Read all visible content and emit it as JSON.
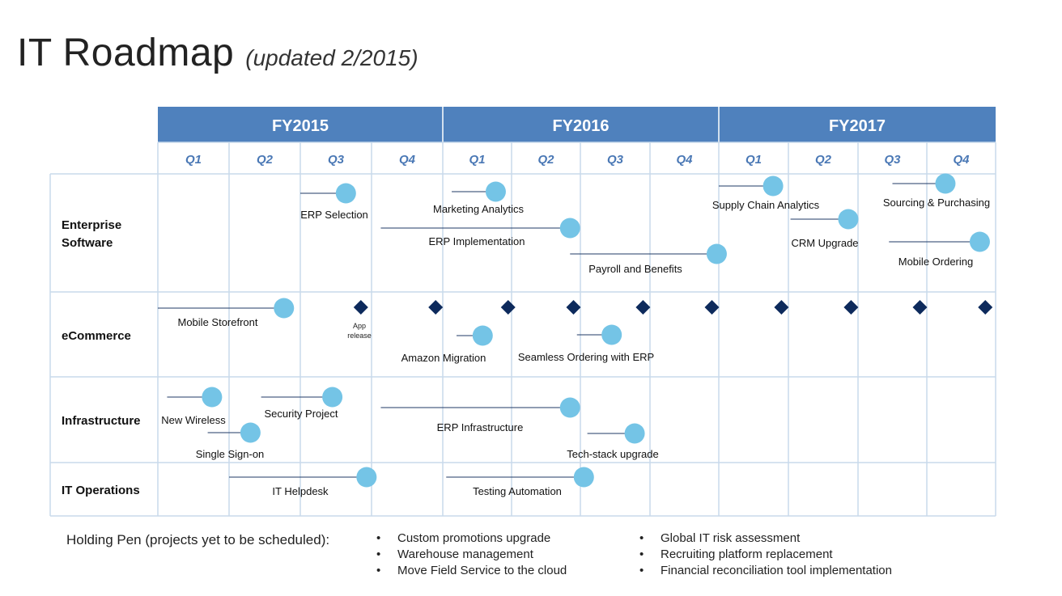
{
  "header": {
    "title": "IT Roadmap",
    "subtitle": "(updated 2/2015)"
  },
  "colors": {
    "header_bg": "#4f81bd",
    "header_text": "#ffffff",
    "quarter_text": "#4a78b5",
    "grid_line": "#c9daeb",
    "milestone": "#74c4e6",
    "diamond": "#0d2a5c",
    "connector": "#1f3864"
  },
  "years": [
    "FY2015",
    "FY2016",
    "FY2017"
  ],
  "quarters": [
    "Q1",
    "Q2",
    "Q3",
    "Q4",
    "Q1",
    "Q2",
    "Q3",
    "Q4",
    "Q1",
    "Q2",
    "Q3",
    "Q4"
  ],
  "rows": [
    {
      "label": [
        "Enterprise",
        "Software"
      ]
    },
    {
      "label": [
        "eCommerce"
      ]
    },
    {
      "label": [
        "Infrastructure"
      ]
    },
    {
      "label": [
        "IT Operations"
      ]
    }
  ],
  "milestones": [
    {
      "label": "ERP Selection",
      "row": 0,
      "start": 2.0,
      "end": 2.64
    },
    {
      "label": "Marketing Analytics",
      "row": 0,
      "start": 4.13,
      "end": 4.77
    },
    {
      "label": "ERP Implementation",
      "row": 0,
      "start": 3.13,
      "end": 5.85
    },
    {
      "label": "Payroll and Benefits",
      "row": 0,
      "start": 5.85,
      "end": 7.97
    },
    {
      "label": "Supply Chain Analytics",
      "row": 0,
      "start": 8.0,
      "end": 8.78
    },
    {
      "label": "CRM Upgrade",
      "row": 0,
      "start": 9.03,
      "end": 9.86
    },
    {
      "label": "Sourcing & Purchasing",
      "row": 0,
      "start": 10.5,
      "end": 11.27
    },
    {
      "label": "Mobile Ordering",
      "row": 0,
      "start": 10.45,
      "end": 11.77
    },
    {
      "label": "Mobile Storefront",
      "row": 1,
      "start": 0.0,
      "end": 1.77
    },
    {
      "label": "Amazon  Migration",
      "row": 1,
      "start": 4.2,
      "end": 4.58
    },
    {
      "label": "Seamless Ordering with ERP",
      "row": 1,
      "start": 5.95,
      "end": 6.45
    },
    {
      "label": "New Wireless",
      "row": 2,
      "start": 0.13,
      "end": 0.76
    },
    {
      "label": "Security Project",
      "row": 2,
      "start": 1.45,
      "end": 2.45
    },
    {
      "label": "Single Sign-on",
      "row": 2,
      "start": 0.7,
      "end": 1.3
    },
    {
      "label": "ERP Infrastructure",
      "row": 2,
      "start": 3.13,
      "end": 5.85
    },
    {
      "label": "Tech-stack upgrade",
      "row": 2,
      "start": 6.1,
      "end": 6.78
    },
    {
      "label": "IT Helpdesk",
      "row": 3,
      "start": 1.0,
      "end": 2.93
    },
    {
      "label": "Testing Automation",
      "row": 3,
      "start": 4.05,
      "end": 6.05
    }
  ],
  "releases": {
    "label_line1": "App",
    "label_line2": "release",
    "positions": [
      2.85,
      3.9,
      4.95,
      5.9,
      6.9,
      7.9,
      8.9,
      9.9,
      10.9,
      11.85
    ]
  },
  "holding_pen": {
    "label": "Holding Pen (projects yet to be scheduled):",
    "items_left": [
      "Custom promotions upgrade",
      "Warehouse management",
      "Move Field Service to the cloud"
    ],
    "items_right": [
      "Global IT risk assessment",
      "Recruiting platform replacement",
      "Financial reconciliation tool implementation"
    ]
  }
}
